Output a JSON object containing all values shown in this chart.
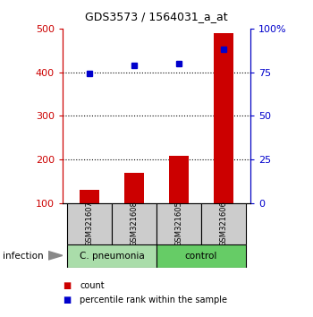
{
  "title": "GDS3573 / 1564031_a_at",
  "samples": [
    "GSM321607",
    "GSM321608",
    "GSM321605",
    "GSM321606"
  ],
  "counts": [
    130,
    168,
    208,
    490
  ],
  "percentiles": [
    74,
    79,
    80,
    88
  ],
  "ylim_left": [
    100,
    500
  ],
  "ylim_right": [
    0,
    100
  ],
  "yticks_left": [
    100,
    200,
    300,
    400,
    500
  ],
  "yticks_right": [
    0,
    25,
    50,
    75,
    100
  ],
  "ytick_labels_right": [
    "0",
    "25",
    "50",
    "75",
    "100%"
  ],
  "groups": [
    {
      "label": "C. pneumonia",
      "indices": [
        0,
        1
      ],
      "color": "#aaddaa"
    },
    {
      "label": "control",
      "indices": [
        2,
        3
      ],
      "color": "#66cc66"
    }
  ],
  "group_factor": "infection",
  "bar_color": "#cc0000",
  "dot_color": "#0000cc",
  "bar_width": 0.45,
  "sample_box_color": "#cccccc",
  "left_axis_color": "#cc0000",
  "right_axis_color": "#0000cc",
  "legend_count_color": "#cc0000",
  "legend_pct_color": "#0000cc"
}
